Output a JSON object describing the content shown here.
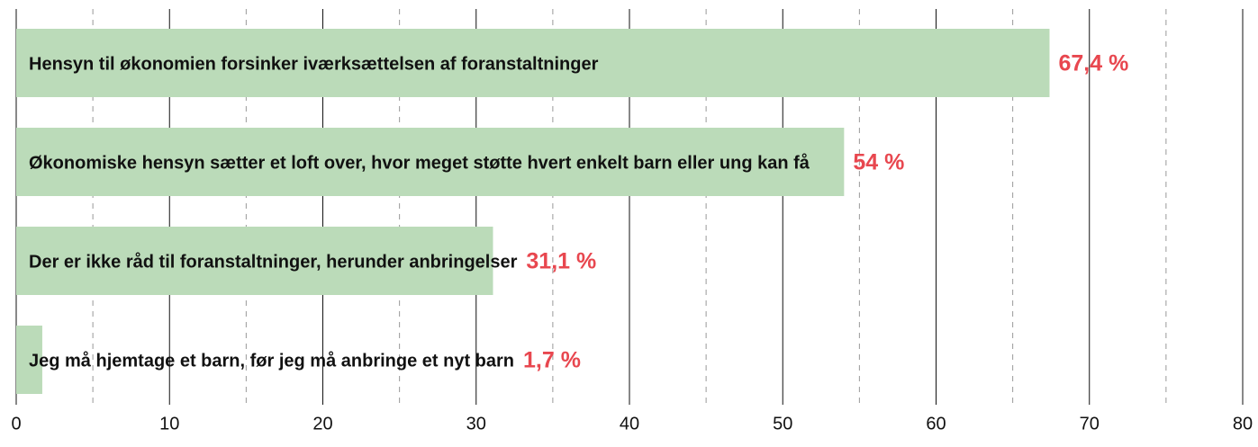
{
  "chart_data": {
    "type": "barh",
    "categories": [
      "Hensyn til økonomien forsinker iværksættelsen af foranstaltninger",
      "Økonomiske hensyn sætter et loft over, hvor meget støtte hvert enkelt barn eller ung kan få",
      "Der er ikke råd til foranstaltninger, herunder anbringelser",
      "Jeg må hjemtage et barn, før jeg må anbringe et nyt barn"
    ],
    "values": [
      67.4,
      54,
      31.1,
      1.7
    ],
    "value_labels": [
      "67,4 %",
      "54 %",
      "31,1 %",
      "1,7 %"
    ],
    "color": "#bbdbb9",
    "label_color": "#e8474f",
    "xlim": [
      0,
      80
    ],
    "xticks": [
      0,
      10,
      20,
      30,
      40,
      50,
      60,
      70,
      80
    ],
    "xminor": [
      5,
      15,
      25,
      35,
      45,
      55,
      65,
      75
    ],
    "grid": true
  }
}
